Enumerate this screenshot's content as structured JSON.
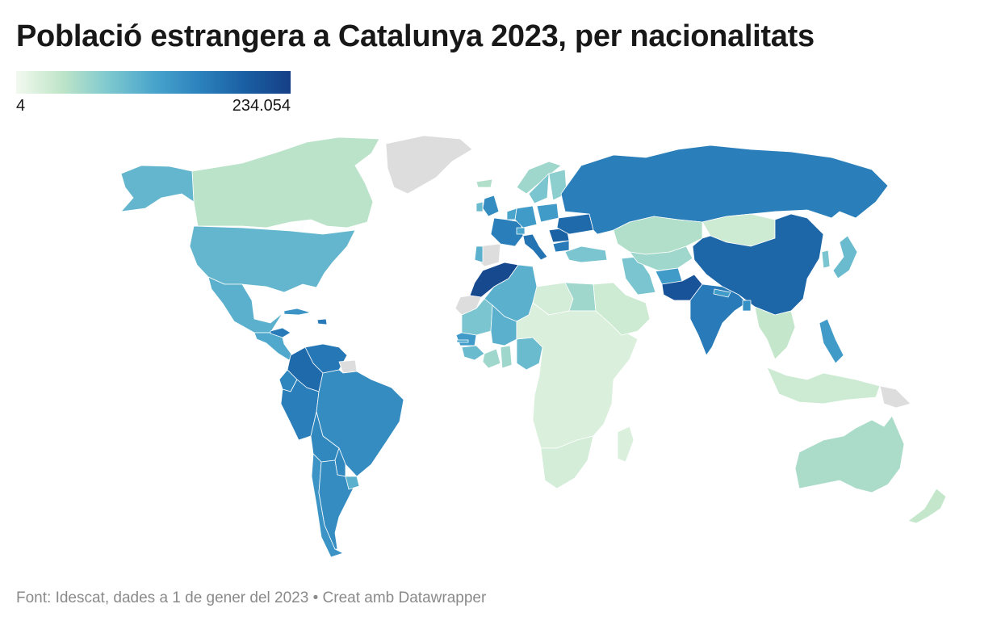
{
  "title": "Població estrangera a Catalunya 2023, per nacionalitats",
  "legend": {
    "min_label": "4",
    "max_label": "234.054",
    "min_value": 4,
    "max_value": 234054,
    "gradient": [
      "#f2f9ef",
      "#bfe5c8",
      "#7fc9cf",
      "#4aa5cc",
      "#2b82bd",
      "#1a5fa3",
      "#163f87"
    ]
  },
  "colors": {
    "no_data": "#dddddd",
    "border": "#ffffff",
    "background": "#ffffff"
  },
  "regions": [
    {
      "name": "Canadà",
      "level": 0.18
    },
    {
      "name": "Alaska",
      "level": 0.42
    },
    {
      "name": "Groenlàndia",
      "level": null
    },
    {
      "name": "Estats Units",
      "level": 0.42
    },
    {
      "name": "Mèxic",
      "level": 0.45
    },
    {
      "name": "Amèrica Central",
      "level": 0.48
    },
    {
      "name": "Hondures",
      "level": 0.7
    },
    {
      "name": "Cuba",
      "level": 0.58
    },
    {
      "name": "República Dominicana",
      "level": 0.7
    },
    {
      "name": "Veneçuela",
      "level": 0.72
    },
    {
      "name": "Colòmbia",
      "level": 0.78
    },
    {
      "name": "Guaiana",
      "level": null
    },
    {
      "name": "Equador",
      "level": 0.65
    },
    {
      "name": "Perú",
      "level": 0.68
    },
    {
      "name": "Brasil",
      "level": 0.62
    },
    {
      "name": "Bolívia",
      "level": 0.64
    },
    {
      "name": "Paraguai",
      "level": 0.64
    },
    {
      "name": "Xile",
      "level": 0.58
    },
    {
      "name": "Argentina",
      "level": 0.62
    },
    {
      "name": "Uruguai",
      "level": 0.45
    },
    {
      "name": "Marroc",
      "level": 0.95
    },
    {
      "name": "Sàhara Occidental",
      "level": null
    },
    {
      "name": "Algèria",
      "level": 0.45
    },
    {
      "name": "Mauritània",
      "level": 0.35
    },
    {
      "name": "Mali",
      "level": 0.45
    },
    {
      "name": "Senegal",
      "level": 0.55
    },
    {
      "name": "Gàmbia",
      "level": 0.5
    },
    {
      "name": "Guinea",
      "level": 0.4
    },
    {
      "name": "Costa d'Ivori",
      "level": 0.25
    },
    {
      "name": "Ghana",
      "level": 0.25
    },
    {
      "name": "Nigèria",
      "level": 0.4
    },
    {
      "name": "Líbia",
      "level": 0.1
    },
    {
      "name": "Egipte",
      "level": 0.25
    },
    {
      "name": "Sudan del Sud",
      "level": null
    },
    {
      "name": "Àfrica central i oriental",
      "level": 0.08
    },
    {
      "name": "Àfrica austral",
      "level": 0.1
    },
    {
      "name": "Madagascar",
      "level": 0.08
    },
    {
      "name": "Espanya",
      "level": null
    },
    {
      "name": "Portugal",
      "level": 0.45
    },
    {
      "name": "França",
      "level": 0.68
    },
    {
      "name": "Regne Unit",
      "level": 0.62
    },
    {
      "name": "Irlanda",
      "level": 0.4
    },
    {
      "name": "Itàlia",
      "level": 0.74
    },
    {
      "name": "Alemanya",
      "level": 0.55
    },
    {
      "name": "Bèlgica i Països Baixos",
      "level": 0.5
    },
    {
      "name": "Suïssa",
      "level": 0.5
    },
    {
      "name": "Polònia",
      "level": 0.55
    },
    {
      "name": "Romania",
      "level": 0.82
    },
    {
      "name": "Ucraïna",
      "level": 0.78
    },
    {
      "name": "Bulgària",
      "level": 0.7
    },
    {
      "name": "Noruega",
      "level": 0.25
    },
    {
      "name": "Suècia",
      "level": 0.35
    },
    {
      "name": "Finlàndia",
      "level": 0.3
    },
    {
      "name": "Islàndia",
      "level": 0.2
    },
    {
      "name": "Rússia",
      "level": 0.68
    },
    {
      "name": "Kazakhstan",
      "level": 0.2
    },
    {
      "name": "Mongòlia",
      "level": 0.12
    },
    {
      "name": "Xina",
      "level": 0.8
    },
    {
      "name": "Turquia",
      "level": 0.35
    },
    {
      "name": "Iran",
      "level": 0.35
    },
    {
      "name": "Àsia Central",
      "level": 0.25
    },
    {
      "name": "Afganistan",
      "level": 0.55
    },
    {
      "name": "Pakistan",
      "level": 0.9
    },
    {
      "name": "Índia",
      "level": 0.7
    },
    {
      "name": "Nepal",
      "level": 0.55
    },
    {
      "name": "Bangladesh",
      "level": 0.6
    },
    {
      "name": "Península Aràbiga",
      "level": 0.12
    },
    {
      "name": "Sud-est asiàtic",
      "level": 0.15
    },
    {
      "name": "Japó",
      "level": 0.4
    },
    {
      "name": "Corea",
      "level": 0.35
    },
    {
      "name": "Filipines",
      "level": 0.55
    },
    {
      "name": "Indonèsia",
      "level": 0.12
    },
    {
      "name": "Papua Nova Guinea",
      "level": null
    },
    {
      "name": "Austràlia",
      "level": 0.22
    },
    {
      "name": "Nova Zelanda",
      "level": 0.15
    }
  ],
  "source": "Font: Idescat, dades a 1 de gener del 2023 • Creat amb Datawrapper"
}
